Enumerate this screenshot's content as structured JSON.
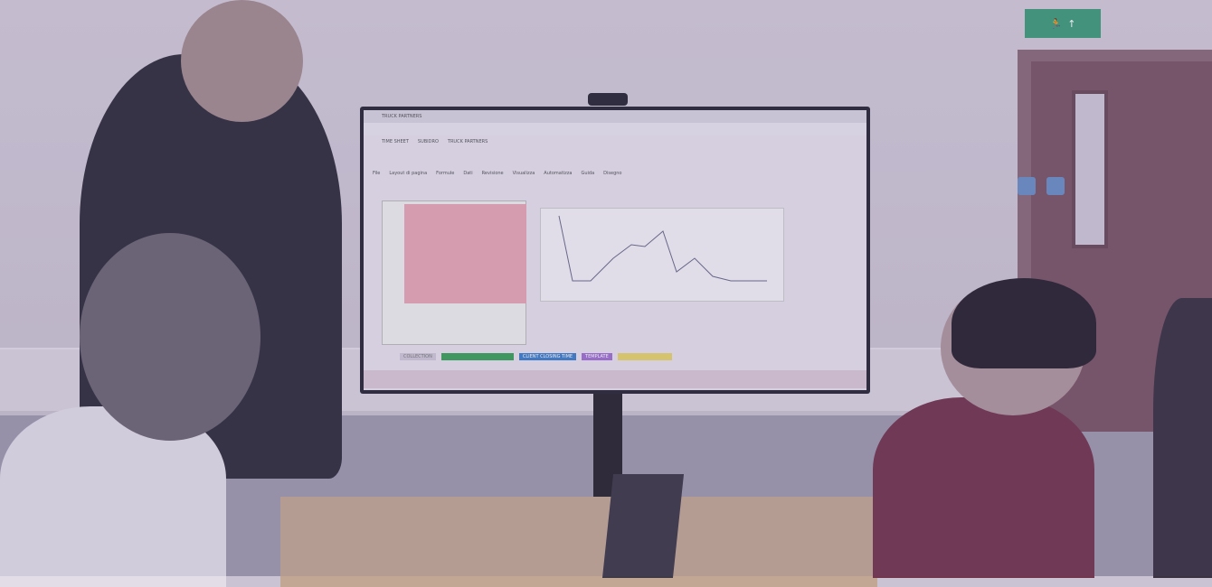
{
  "scene": {
    "description_colors": {
      "wall": "#d3cbd8",
      "tint": "#5a4f8a"
    }
  },
  "exit_sign": {
    "icon": "running-man-exit-icon",
    "arrow": "↑"
  },
  "screen": {
    "tab_title": "TRUCK PARTNERS",
    "bookmarks": [
      "TIME SHEET",
      "SUBIDRO",
      "TRUCK PARTNERS"
    ],
    "menu": [
      "File",
      "Layout di pagina",
      "Formule",
      "Dati",
      "Revisione",
      "Visualizza",
      "Automatizza",
      "Guida",
      "Disegno"
    ],
    "sheet_tabs": [
      {
        "label": "COLLECTION",
        "color": "#cfc8d6"
      },
      {
        "label": "",
        "color": "#3ea15a"
      },
      {
        "label": "CLIENT CLOSING TIME",
        "color": "#3f7fc9"
      },
      {
        "label": "TEMPLATE",
        "color": "#a071d0"
      },
      {
        "label": "",
        "color": "#e6d36a"
      }
    ]
  }
}
